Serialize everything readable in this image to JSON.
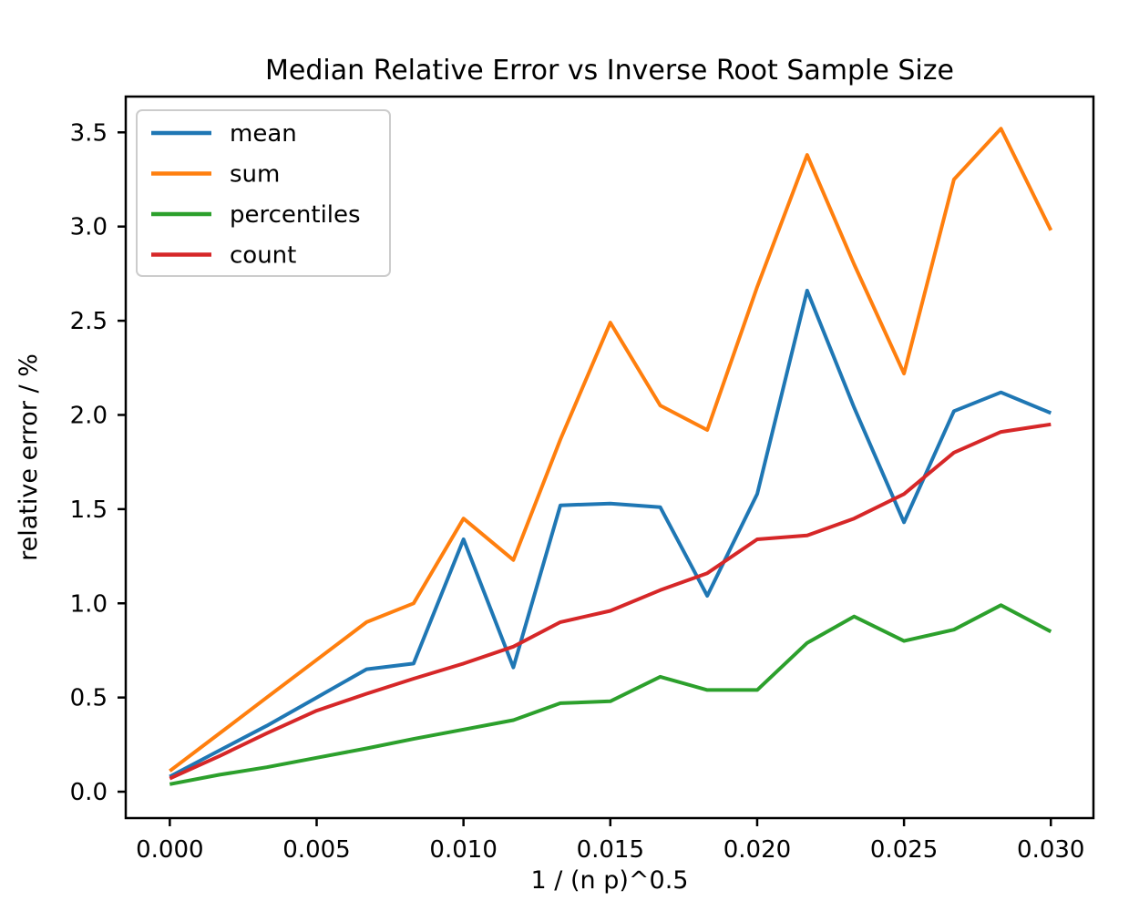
{
  "figure": {
    "background": "#ffffff",
    "text_color": "#000000",
    "spine_color": "#000000",
    "legend_border_color": "#cccccc",
    "legend_background": "#ffffff"
  },
  "chart_data": {
    "type": "line",
    "title": "Median Relative Error vs Inverse Root Sample Size",
    "xlabel": "1 / (n p)^0.5",
    "ylabel": "relative error / %",
    "grid": false,
    "legend_position": "upper left",
    "xlim": [
      -0.0015,
      0.03145
    ],
    "ylim": [
      -0.14,
      3.69
    ],
    "x_ticks": {
      "values": [
        0.0,
        0.005,
        0.01,
        0.015,
        0.02,
        0.025,
        0.03
      ],
      "labels": [
        "0.000",
        "0.005",
        "0.010",
        "0.015",
        "0.020",
        "0.025",
        "0.030"
      ]
    },
    "y_ticks": {
      "values": [
        0.0,
        0.5,
        1.0,
        1.5,
        2.0,
        2.5,
        3.0,
        3.5
      ],
      "labels": [
        "0.0",
        "0.5",
        "1.0",
        "1.5",
        "2.0",
        "2.5",
        "3.0",
        "3.5"
      ]
    },
    "x": [
      0.0,
      0.0017,
      0.0033,
      0.005,
      0.0067,
      0.0083,
      0.01,
      0.0117,
      0.0133,
      0.015,
      0.0167,
      0.0183,
      0.02,
      0.0217,
      0.0233,
      0.025,
      0.0267,
      0.0283,
      0.03
    ],
    "series": [
      {
        "name": "mean",
        "color": "#1f77b4",
        "values": [
          0.08,
          0.22,
          0.35,
          0.5,
          0.65,
          0.68,
          1.34,
          0.66,
          1.52,
          1.53,
          1.51,
          1.04,
          1.58,
          2.66,
          2.04,
          1.43,
          2.02,
          2.12,
          2.01
        ]
      },
      {
        "name": "sum",
        "color": "#ff7f0e",
        "values": [
          0.11,
          0.31,
          0.5,
          0.7,
          0.9,
          1.0,
          1.45,
          1.23,
          1.87,
          2.49,
          2.05,
          1.92,
          2.68,
          3.38,
          2.8,
          2.22,
          3.25,
          3.52,
          2.98
        ]
      },
      {
        "name": "percentiles",
        "color": "#2ca02c",
        "values": [
          0.04,
          0.09,
          0.13,
          0.18,
          0.23,
          0.28,
          0.33,
          0.38,
          0.47,
          0.48,
          0.61,
          0.54,
          0.54,
          0.79,
          0.93,
          0.8,
          0.86,
          0.99,
          0.85
        ]
      },
      {
        "name": "count",
        "color": "#d62728",
        "values": [
          0.07,
          0.19,
          0.31,
          0.43,
          0.52,
          0.6,
          0.68,
          0.77,
          0.9,
          0.96,
          1.07,
          1.16,
          1.34,
          1.36,
          1.45,
          1.58,
          1.8,
          1.91,
          1.95
        ]
      }
    ]
  }
}
